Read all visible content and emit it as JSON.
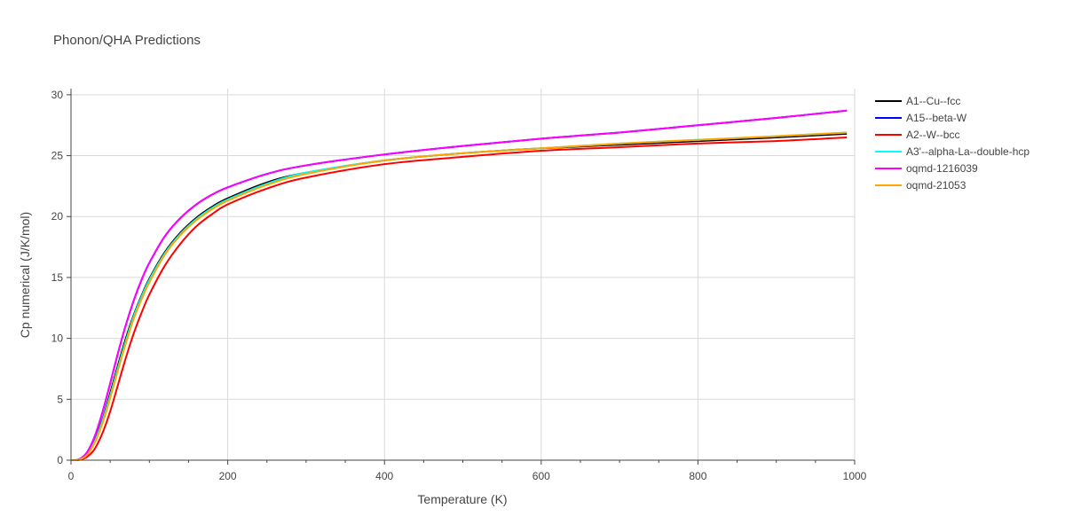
{
  "chart_data": {
    "type": "line",
    "title": "Phonon/QHA Predictions",
    "xlabel": "Temperature (K)",
    "ylabel": "Cp numerical (J/K/mol)",
    "xlim": [
      0,
      1000
    ],
    "ylim": [
      0,
      30.5
    ],
    "x_ticks": [
      0,
      200,
      400,
      600,
      800,
      1000
    ],
    "y_ticks": [
      0,
      5,
      10,
      15,
      20,
      25,
      30
    ],
    "grid": true,
    "legend_position": "top-right",
    "series": [
      {
        "name": "A1--Cu--fcc",
        "color": "#000000",
        "x": [
          0,
          10,
          20,
          30,
          40,
          50,
          60,
          70,
          80,
          90,
          100,
          120,
          140,
          160,
          180,
          200,
          250,
          300,
          400,
          500,
          600,
          700,
          800,
          900,
          990
        ],
        "y": [
          0,
          0.05,
          0.5,
          1.6,
          3.3,
          5.5,
          7.8,
          10.0,
          11.9,
          13.5,
          14.9,
          17.1,
          18.7,
          19.9,
          20.8,
          21.5,
          22.8,
          23.6,
          24.6,
          25.2,
          25.6,
          25.9,
          26.2,
          26.5,
          26.8
        ]
      },
      {
        "name": "A15--beta-W",
        "color": "#0000ff",
        "x": [
          0,
          10,
          20,
          30,
          40,
          50,
          60,
          70,
          80,
          90,
          100,
          120,
          140,
          160,
          180,
          200,
          250,
          300,
          400,
          500,
          600,
          700,
          800,
          900,
          990
        ],
        "y": [
          0,
          0.06,
          0.6,
          1.9,
          3.9,
          6.3,
          8.8,
          11.1,
          13.1,
          14.8,
          16.2,
          18.4,
          19.9,
          21.0,
          21.8,
          22.4,
          23.5,
          24.2,
          25.1,
          25.8,
          26.4,
          26.9,
          27.5,
          28.1,
          28.7
        ]
      },
      {
        "name": "A2--W--bcc",
        "color": "#ff0000",
        "x": [
          0,
          10,
          20,
          30,
          40,
          50,
          60,
          70,
          80,
          90,
          100,
          120,
          140,
          160,
          180,
          200,
          250,
          300,
          400,
          500,
          600,
          700,
          800,
          900,
          990
        ],
        "y": [
          0,
          0.02,
          0.25,
          0.9,
          2.2,
          4.0,
          6.2,
          8.4,
          10.4,
          12.1,
          13.6,
          16.0,
          17.8,
          19.2,
          20.2,
          21.0,
          22.3,
          23.2,
          24.3,
          24.9,
          25.4,
          25.7,
          26.0,
          26.2,
          26.5
        ]
      },
      {
        "name": "A3'--alpha-La--double-hcp",
        "color": "#00ffff",
        "x": [
          0,
          10,
          20,
          30,
          40,
          50,
          60,
          70,
          80,
          90,
          100,
          120,
          140,
          160,
          180,
          200,
          250,
          300,
          400,
          500,
          600,
          700,
          800,
          900,
          990
        ],
        "y": [
          0,
          0.05,
          0.45,
          1.5,
          3.2,
          5.3,
          7.6,
          9.8,
          11.8,
          13.4,
          14.8,
          17.0,
          18.6,
          19.8,
          20.7,
          21.4,
          22.7,
          23.6,
          24.6,
          25.2,
          25.6,
          26.0,
          26.3,
          26.6,
          26.9
        ]
      },
      {
        "name": "oqmd-1216039",
        "color": "#ff00ff",
        "x": [
          0,
          10,
          20,
          30,
          40,
          50,
          60,
          70,
          80,
          90,
          100,
          120,
          140,
          160,
          180,
          200,
          250,
          300,
          400,
          500,
          600,
          700,
          800,
          900,
          990
        ],
        "y": [
          0,
          0.06,
          0.6,
          1.9,
          3.9,
          6.3,
          8.8,
          11.1,
          13.1,
          14.8,
          16.2,
          18.4,
          19.9,
          21.0,
          21.8,
          22.4,
          23.5,
          24.2,
          25.1,
          25.8,
          26.4,
          26.9,
          27.5,
          28.1,
          28.7
        ]
      },
      {
        "name": "oqmd-21053",
        "color": "#ffa500",
        "x": [
          0,
          10,
          20,
          30,
          40,
          50,
          60,
          70,
          80,
          90,
          100,
          120,
          140,
          160,
          180,
          200,
          250,
          300,
          400,
          500,
          600,
          700,
          800,
          900,
          990
        ],
        "y": [
          0,
          0.04,
          0.4,
          1.4,
          3.0,
          5.1,
          7.4,
          9.6,
          11.6,
          13.2,
          14.6,
          16.9,
          18.5,
          19.7,
          20.6,
          21.3,
          22.6,
          23.5,
          24.6,
          25.2,
          25.6,
          26.0,
          26.3,
          26.6,
          26.9
        ]
      }
    ]
  }
}
